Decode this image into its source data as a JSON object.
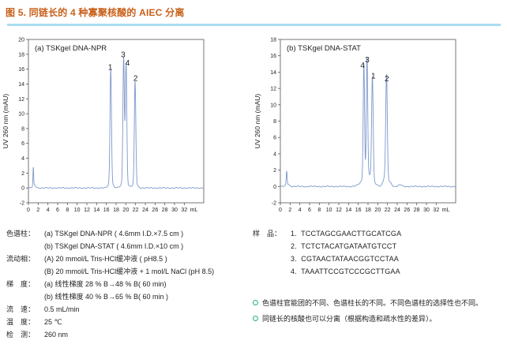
{
  "figure": {
    "title": "图 5. 同链长的 4 种寡聚核酸的 AIEC 分离"
  },
  "colors": {
    "accent": "#c8601a",
    "divider": "#aadcf0",
    "trace": "#7b97cc",
    "axis": "#555555",
    "bullet": "#35a98d",
    "text": "#222222"
  },
  "chart_data": [
    {
      "type": "line",
      "title": "(a) TSKgel DNA-NPR",
      "xlabel": "mL",
      "ylabel": "UV 260 nm (mAU)",
      "xlim": [
        0,
        36
      ],
      "ylim": [
        -2,
        20
      ],
      "xticks": [
        0,
        2,
        4,
        6,
        8,
        10,
        12,
        14,
        16,
        18,
        20,
        22,
        24,
        26,
        28,
        30,
        32
      ],
      "yticks": [
        -2,
        0,
        2,
        4,
        6,
        8,
        10,
        12,
        14,
        16,
        18,
        20
      ],
      "grid": false,
      "peaks": [
        {
          "x": 1.0,
          "h": 2.4,
          "w": 0.07
        },
        {
          "x": 1.2,
          "h": 0.4,
          "w": 0.3
        },
        {
          "x": 16.9,
          "h": 15.3,
          "w": 0.15
        },
        {
          "x": 16.9,
          "h": 0.7,
          "w": 0.45
        },
        {
          "x": 19.55,
          "h": 16.8,
          "w": 0.15
        },
        {
          "x": 20.05,
          "h": 16.0,
          "w": 0.15
        },
        {
          "x": 19.8,
          "h": 0.9,
          "w": 0.6
        },
        {
          "x": 21.9,
          "h": 13.7,
          "w": 0.15
        },
        {
          "x": 21.9,
          "h": 0.6,
          "w": 0.45
        }
      ],
      "labels": [
        {
          "text": "1",
          "x": 16.8,
          "y": 15.9
        },
        {
          "text": "3",
          "x": 19.45,
          "y": 17.6
        },
        {
          "text": "4",
          "x": 20.35,
          "y": 16.5
        },
        {
          "text": "2",
          "x": 22.0,
          "y": 14.4
        }
      ]
    },
    {
      "type": "line",
      "title": "(b) TSKgel DNA-STAT",
      "xlabel": "mL",
      "ylabel": "UV 260 nm (mAU)",
      "xlim": [
        0,
        36
      ],
      "ylim": [
        -2,
        18
      ],
      "xticks": [
        0,
        2,
        4,
        6,
        8,
        10,
        12,
        14,
        16,
        18,
        20,
        22,
        24,
        26,
        28,
        30,
        32
      ],
      "yticks": [
        -2,
        0,
        2,
        4,
        6,
        8,
        10,
        12,
        14,
        16,
        18
      ],
      "grid": false,
      "peaks": [
        {
          "x": 1.3,
          "h": 1.6,
          "w": 0.09
        },
        {
          "x": 1.5,
          "h": 0.3,
          "w": 0.35
        },
        {
          "x": 17.15,
          "h": 13.9,
          "w": 0.14
        },
        {
          "x": 17.8,
          "h": 14.3,
          "w": 0.14
        },
        {
          "x": 18.9,
          "h": 12.5,
          "w": 0.16
        },
        {
          "x": 17.9,
          "h": 1.5,
          "w": 1.0
        },
        {
          "x": 21.8,
          "h": 12.1,
          "w": 0.16
        },
        {
          "x": 21.7,
          "h": 1.6,
          "w": 0.45
        },
        {
          "x": 22.7,
          "h": 0.3,
          "w": 0.25
        },
        {
          "x": 24.6,
          "h": 0.2,
          "w": 0.35
        }
      ],
      "labels": [
        {
          "text": "4",
          "x": 16.9,
          "y": 14.5
        },
        {
          "text": "3",
          "x": 17.85,
          "y": 15.2
        },
        {
          "text": "1",
          "x": 19.1,
          "y": 13.2
        },
        {
          "text": "2",
          "x": 21.85,
          "y": 12.9
        }
      ]
    }
  ],
  "conditions": {
    "rows": [
      {
        "label": "色谱柱：",
        "text": "(a) TSKgel DNA-NPR ( 4.6mm I.D.×7.5 cm )"
      },
      {
        "label": "",
        "text": "(b) TSKgel DNA-STAT ( 4.6mm I.D.×10 cm )"
      },
      {
        "label": "流动相：",
        "text": "(A) 20 mmol/L Tris-HCl缓冲液 ( pH8.5 )"
      },
      {
        "label": "",
        "text": "(B) 20 mmol/L Tris-HCl缓冲液 + 1 mol/L NaCl (pH 8.5)"
      },
      {
        "label": "梯　度：",
        "text": "(a) 线性梯度 28 % B→48 % B( 60 min)"
      },
      {
        "label": "",
        "text": "(b) 线性梯度 40 % B→65 % B( 60 min )"
      },
      {
        "label": "流　速：",
        "text": "0.5 mL/min"
      },
      {
        "label": "温　度：",
        "text": "25 ℃"
      },
      {
        "label": "检　测：",
        "text": "260 nm"
      }
    ]
  },
  "samples": {
    "label": "样　品：",
    "items": [
      "1.  TCCTAGCGAACTTGCATCGA",
      "2.  TCTCTACATGATAATGTCCT",
      "3.  CGTAACTATAACGGTCCTAA",
      "4.  TAAATTCCGTCCCGCTTGAA"
    ]
  },
  "notes": {
    "items": [
      "色谱柱官能团的不同、色谱柱长的不同。不同色谱柱的选择性也不同。",
      "同链长的核酸也可以分离（根据构造和疏水性的差异）。"
    ]
  }
}
